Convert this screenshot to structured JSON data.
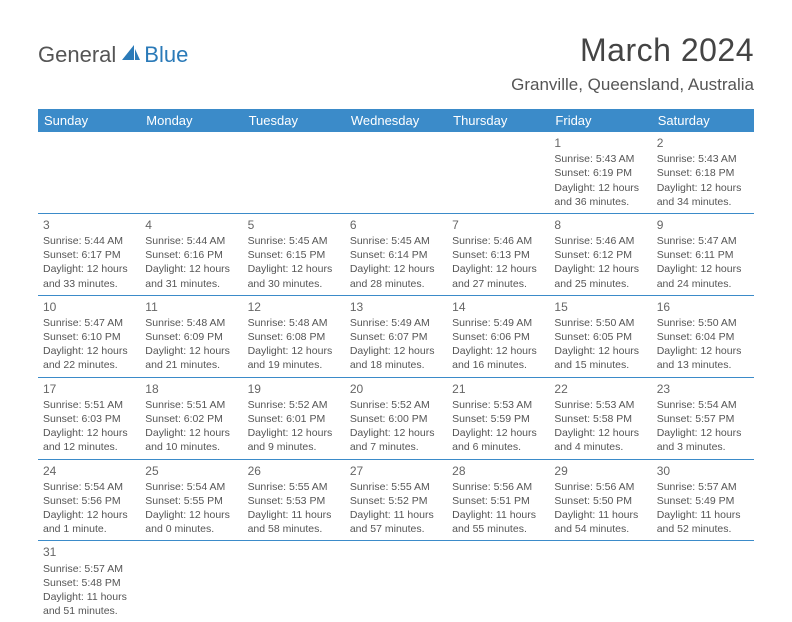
{
  "logo": {
    "general": "General",
    "blue": "Blue"
  },
  "title": "March 2024",
  "location": "Granville, Queensland, Australia",
  "day_headers": [
    "Sunday",
    "Monday",
    "Tuesday",
    "Wednesday",
    "Thursday",
    "Friday",
    "Saturday"
  ],
  "colors": {
    "header_bg": "#3b8bc9",
    "header_text": "#ffffff",
    "border": "#3b8bc9",
    "text": "#555555",
    "title_text": "#444444"
  },
  "weeks": [
    [
      null,
      null,
      null,
      null,
      null,
      {
        "n": "1",
        "sr": "5:43 AM",
        "ss": "6:19 PM",
        "dl": "12 hours and 36 minutes."
      },
      {
        "n": "2",
        "sr": "5:43 AM",
        "ss": "6:18 PM",
        "dl": "12 hours and 34 minutes."
      }
    ],
    [
      {
        "n": "3",
        "sr": "5:44 AM",
        "ss": "6:17 PM",
        "dl": "12 hours and 33 minutes."
      },
      {
        "n": "4",
        "sr": "5:44 AM",
        "ss": "6:16 PM",
        "dl": "12 hours and 31 minutes."
      },
      {
        "n": "5",
        "sr": "5:45 AM",
        "ss": "6:15 PM",
        "dl": "12 hours and 30 minutes."
      },
      {
        "n": "6",
        "sr": "5:45 AM",
        "ss": "6:14 PM",
        "dl": "12 hours and 28 minutes."
      },
      {
        "n": "7",
        "sr": "5:46 AM",
        "ss": "6:13 PM",
        "dl": "12 hours and 27 minutes."
      },
      {
        "n": "8",
        "sr": "5:46 AM",
        "ss": "6:12 PM",
        "dl": "12 hours and 25 minutes."
      },
      {
        "n": "9",
        "sr": "5:47 AM",
        "ss": "6:11 PM",
        "dl": "12 hours and 24 minutes."
      }
    ],
    [
      {
        "n": "10",
        "sr": "5:47 AM",
        "ss": "6:10 PM",
        "dl": "12 hours and 22 minutes."
      },
      {
        "n": "11",
        "sr": "5:48 AM",
        "ss": "6:09 PM",
        "dl": "12 hours and 21 minutes."
      },
      {
        "n": "12",
        "sr": "5:48 AM",
        "ss": "6:08 PM",
        "dl": "12 hours and 19 minutes."
      },
      {
        "n": "13",
        "sr": "5:49 AM",
        "ss": "6:07 PM",
        "dl": "12 hours and 18 minutes."
      },
      {
        "n": "14",
        "sr": "5:49 AM",
        "ss": "6:06 PM",
        "dl": "12 hours and 16 minutes."
      },
      {
        "n": "15",
        "sr": "5:50 AM",
        "ss": "6:05 PM",
        "dl": "12 hours and 15 minutes."
      },
      {
        "n": "16",
        "sr": "5:50 AM",
        "ss": "6:04 PM",
        "dl": "12 hours and 13 minutes."
      }
    ],
    [
      {
        "n": "17",
        "sr": "5:51 AM",
        "ss": "6:03 PM",
        "dl": "12 hours and 12 minutes."
      },
      {
        "n": "18",
        "sr": "5:51 AM",
        "ss": "6:02 PM",
        "dl": "12 hours and 10 minutes."
      },
      {
        "n": "19",
        "sr": "5:52 AM",
        "ss": "6:01 PM",
        "dl": "12 hours and 9 minutes."
      },
      {
        "n": "20",
        "sr": "5:52 AM",
        "ss": "6:00 PM",
        "dl": "12 hours and 7 minutes."
      },
      {
        "n": "21",
        "sr": "5:53 AM",
        "ss": "5:59 PM",
        "dl": "12 hours and 6 minutes."
      },
      {
        "n": "22",
        "sr": "5:53 AM",
        "ss": "5:58 PM",
        "dl": "12 hours and 4 minutes."
      },
      {
        "n": "23",
        "sr": "5:54 AM",
        "ss": "5:57 PM",
        "dl": "12 hours and 3 minutes."
      }
    ],
    [
      {
        "n": "24",
        "sr": "5:54 AM",
        "ss": "5:56 PM",
        "dl": "12 hours and 1 minute."
      },
      {
        "n": "25",
        "sr": "5:54 AM",
        "ss": "5:55 PM",
        "dl": "12 hours and 0 minutes."
      },
      {
        "n": "26",
        "sr": "5:55 AM",
        "ss": "5:53 PM",
        "dl": "11 hours and 58 minutes."
      },
      {
        "n": "27",
        "sr": "5:55 AM",
        "ss": "5:52 PM",
        "dl": "11 hours and 57 minutes."
      },
      {
        "n": "28",
        "sr": "5:56 AM",
        "ss": "5:51 PM",
        "dl": "11 hours and 55 minutes."
      },
      {
        "n": "29",
        "sr": "5:56 AM",
        "ss": "5:50 PM",
        "dl": "11 hours and 54 minutes."
      },
      {
        "n": "30",
        "sr": "5:57 AM",
        "ss": "5:49 PM",
        "dl": "11 hours and 52 minutes."
      }
    ],
    [
      {
        "n": "31",
        "sr": "5:57 AM",
        "ss": "5:48 PM",
        "dl": "11 hours and 51 minutes."
      },
      null,
      null,
      null,
      null,
      null,
      null
    ]
  ],
  "labels": {
    "sunrise": "Sunrise:",
    "sunset": "Sunset:",
    "daylight": "Daylight:"
  }
}
